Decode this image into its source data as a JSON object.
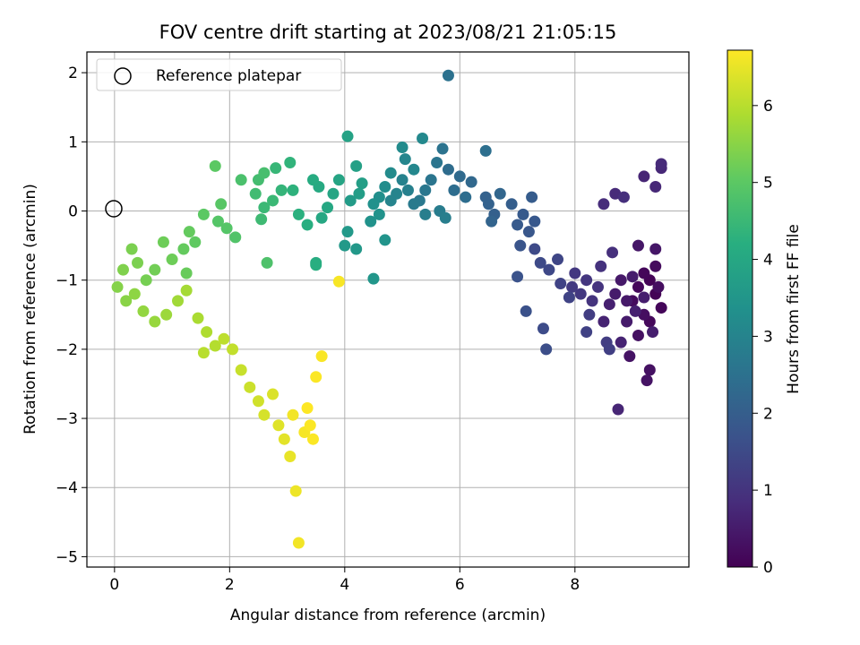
{
  "chart_data": {
    "type": "scatter",
    "title": "FOV centre drift starting at 2023/08/21 21:05:15",
    "xlabel": "Angular distance from reference (arcmin)",
    "ylabel": "Rotation from reference (arcmin)",
    "xlim": [
      -0.48,
      9.98
    ],
    "ylim": [
      -5.15,
      2.3
    ],
    "xticks": [
      0,
      2,
      4,
      6,
      8
    ],
    "yticks": [
      -5,
      -4,
      -3,
      -2,
      -1,
      0,
      1,
      2
    ],
    "grid": true,
    "legend": {
      "placement": "top-left",
      "entries": [
        "Reference platepar"
      ]
    },
    "reference_point": {
      "x": 0,
      "y": 0,
      "label": "Reference platepar"
    },
    "colorbar": {
      "label": "Hours from first FF file",
      "min": 0,
      "max": 6.72,
      "ticks": [
        0,
        1,
        2,
        3,
        4,
        5,
        6
      ],
      "colormap": "viridis"
    },
    "points": [
      [
        9.3,
        -1.0,
        0.05
      ],
      [
        9.4,
        -1.2,
        0.05
      ],
      [
        9.2,
        -0.9,
        0.1
      ],
      [
        9.5,
        -1.4,
        0.1
      ],
      [
        9.1,
        -1.1,
        0.12
      ],
      [
        9.3,
        -1.6,
        0.15
      ],
      [
        9.0,
        -1.3,
        0.2
      ],
      [
        9.4,
        -0.8,
        0.2
      ],
      [
        9.2,
        -1.5,
        0.25
      ],
      [
        9.45,
        -1.1,
        0.25
      ],
      [
        9.1,
        -1.8,
        0.3
      ],
      [
        9.3,
        -2.3,
        0.3
      ],
      [
        9.25,
        -2.45,
        0.35
      ],
      [
        8.95,
        -2.1,
        0.35
      ],
      [
        9.4,
        -0.55,
        0.4
      ],
      [
        9.1,
        -0.5,
        0.4
      ],
      [
        8.9,
        -1.3,
        0.45
      ],
      [
        8.8,
        -1.0,
        0.45
      ],
      [
        8.7,
        -1.2,
        0.5
      ],
      [
        8.9,
        -1.6,
        0.5
      ],
      [
        9.0,
        -0.95,
        0.52
      ],
      [
        9.2,
        -1.25,
        0.55
      ],
      [
        9.35,
        -1.75,
        0.55
      ],
      [
        9.05,
        -1.45,
        0.6
      ],
      [
        8.6,
        -1.35,
        0.6
      ],
      [
        8.5,
        -1.6,
        0.65
      ],
      [
        8.8,
        -1.9,
        0.65
      ],
      [
        8.75,
        -2.87,
        0.7
      ],
      [
        9.2,
        0.5,
        0.7
      ],
      [
        9.4,
        0.35,
        0.75
      ],
      [
        9.5,
        0.62,
        0.75
      ],
      [
        9.5,
        0.68,
        0.8
      ],
      [
        8.7,
        0.25,
        0.8
      ],
      [
        8.5,
        0.1,
        0.85
      ],
      [
        8.85,
        0.2,
        0.9
      ],
      [
        8.65,
        -0.6,
        0.9
      ],
      [
        8.45,
        -0.8,
        0.95
      ],
      [
        8.4,
        -1.1,
        1.0
      ],
      [
        8.3,
        -1.3,
        1.0
      ],
      [
        8.2,
        -1.0,
        1.05
      ],
      [
        8.1,
        -1.2,
        1.1
      ],
      [
        8.0,
        -0.9,
        1.1
      ],
      [
        7.95,
        -1.1,
        1.15
      ],
      [
        8.25,
        -1.5,
        1.2
      ],
      [
        8.55,
        -1.9,
        1.2
      ],
      [
        8.6,
        -2.0,
        1.25
      ],
      [
        8.2,
        -1.75,
        1.3
      ],
      [
        7.9,
        -1.25,
        1.35
      ],
      [
        7.75,
        -1.05,
        1.35
      ],
      [
        7.7,
        -0.7,
        1.4
      ],
      [
        7.55,
        -0.85,
        1.45
      ],
      [
        7.4,
        -0.75,
        1.5
      ],
      [
        7.3,
        -0.55,
        1.5
      ],
      [
        7.45,
        -1.7,
        1.55
      ],
      [
        7.5,
        -2.0,
        1.6
      ],
      [
        7.15,
        -1.45,
        1.65
      ],
      [
        7.0,
        -0.95,
        1.7
      ],
      [
        7.05,
        -0.5,
        1.75
      ],
      [
        7.2,
        -0.3,
        1.8
      ],
      [
        7.3,
        -0.15,
        1.85
      ],
      [
        7.0,
        -0.2,
        1.9
      ],
      [
        7.1,
        -0.05,
        1.9
      ],
      [
        7.25,
        0.2,
        1.95
      ],
      [
        6.9,
        0.1,
        2.0
      ],
      [
        6.6,
        -0.05,
        2.05
      ],
      [
        6.5,
        0.1,
        2.1
      ],
      [
        6.45,
        0.2,
        2.1
      ],
      [
        6.55,
        -0.15,
        2.15
      ],
      [
        6.7,
        0.25,
        2.2
      ],
      [
        6.2,
        0.42,
        2.25
      ],
      [
        6.0,
        0.5,
        2.3
      ],
      [
        5.8,
        0.6,
        2.35
      ],
      [
        5.9,
        0.3,
        2.4
      ],
      [
        6.1,
        0.2,
        2.4
      ],
      [
        6.45,
        0.87,
        2.45
      ],
      [
        5.8,
        1.96,
        2.5
      ],
      [
        5.7,
        0.9,
        2.55
      ],
      [
        5.6,
        0.7,
        2.6
      ],
      [
        5.5,
        0.45,
        2.6
      ],
      [
        5.4,
        0.3,
        2.65
      ],
      [
        5.3,
        0.15,
        2.7
      ],
      [
        5.2,
        0.1,
        2.75
      ],
      [
        5.65,
        0.0,
        2.8
      ],
      [
        5.75,
        -0.1,
        2.85
      ],
      [
        5.4,
        -0.05,
        2.85
      ],
      [
        5.1,
        0.3,
        2.9
      ],
      [
        5.0,
        0.45,
        2.95
      ],
      [
        4.9,
        0.25,
        3.0
      ],
      [
        4.8,
        0.15,
        3.0
      ],
      [
        5.05,
        0.75,
        3.05
      ],
      [
        5.2,
        0.6,
        3.1
      ],
      [
        5.35,
        1.05,
        3.15
      ],
      [
        5.0,
        0.92,
        3.2
      ],
      [
        4.8,
        0.55,
        3.2
      ],
      [
        4.7,
        0.35,
        3.25
      ],
      [
        4.6,
        0.2,
        3.3
      ],
      [
        4.5,
        0.1,
        3.35
      ],
      [
        4.45,
        -0.15,
        3.4
      ],
      [
        4.6,
        -0.05,
        3.4
      ],
      [
        4.7,
        -0.42,
        3.45
      ],
      [
        4.5,
        -0.98,
        3.5
      ],
      [
        4.2,
        -0.55,
        3.55
      ],
      [
        4.05,
        -0.3,
        3.6
      ],
      [
        4.0,
        -0.5,
        3.6
      ],
      [
        4.1,
        0.15,
        3.65
      ],
      [
        4.25,
        0.25,
        3.7
      ],
      [
        4.3,
        0.4,
        3.75
      ],
      [
        4.2,
        0.65,
        3.8
      ],
      [
        4.05,
        1.08,
        3.85
      ],
      [
        3.9,
        0.45,
        3.9
      ],
      [
        3.8,
        0.25,
        3.95
      ],
      [
        3.7,
        0.05,
        4.0
      ],
      [
        3.6,
        -0.1,
        4.0
      ],
      [
        3.55,
        0.35,
        4.05
      ],
      [
        3.45,
        0.45,
        4.1
      ],
      [
        3.5,
        -0.75,
        4.15
      ],
      [
        3.5,
        -0.78,
        4.2
      ],
      [
        3.35,
        -0.2,
        4.2
      ],
      [
        3.2,
        -0.05,
        4.25
      ],
      [
        3.1,
        0.3,
        4.3
      ],
      [
        3.05,
        0.7,
        4.35
      ],
      [
        2.9,
        0.3,
        4.4
      ],
      [
        2.8,
        0.62,
        4.45
      ],
      [
        2.75,
        0.15,
        4.5
      ],
      [
        2.6,
        0.05,
        4.5
      ],
      [
        2.55,
        -0.12,
        4.55
      ],
      [
        2.45,
        0.25,
        4.6
      ],
      [
        2.5,
        0.45,
        4.65
      ],
      [
        2.6,
        0.55,
        4.7
      ],
      [
        2.2,
        0.45,
        4.75
      ],
      [
        2.65,
        -0.75,
        4.8
      ],
      [
        2.1,
        -0.38,
        4.85
      ],
      [
        1.95,
        -0.25,
        4.9
      ],
      [
        1.8,
        -0.15,
        4.9
      ],
      [
        1.85,
        0.1,
        4.95
      ],
      [
        1.75,
        0.65,
        5.0
      ],
      [
        1.55,
        -0.05,
        5.0
      ],
      [
        1.4,
        -0.45,
        5.05
      ],
      [
        1.3,
        -0.3,
        5.1
      ],
      [
        1.2,
        -0.55,
        5.1
      ],
      [
        1.25,
        -0.9,
        5.15
      ],
      [
        1.0,
        -0.7,
        5.2
      ],
      [
        0.85,
        -0.45,
        5.2
      ],
      [
        0.7,
        -0.85,
        5.25
      ],
      [
        0.55,
        -1.0,
        5.3
      ],
      [
        0.4,
        -0.75,
        5.35
      ],
      [
        0.3,
        -0.55,
        5.35
      ],
      [
        0.15,
        -0.85,
        5.4
      ],
      [
        0.05,
        -1.1,
        5.45
      ],
      [
        0.2,
        -1.3,
        5.5
      ],
      [
        0.35,
        -1.2,
        5.55
      ],
      [
        0.5,
        -1.45,
        5.6
      ],
      [
        0.7,
        -1.6,
        5.65
      ],
      [
        0.9,
        -1.5,
        5.7
      ],
      [
        1.1,
        -1.3,
        5.75
      ],
      [
        1.25,
        -1.15,
        5.8
      ],
      [
        1.45,
        -1.55,
        5.85
      ],
      [
        1.6,
        -1.75,
        5.9
      ],
      [
        1.75,
        -1.95,
        5.95
      ],
      [
        1.55,
        -2.05,
        6.0
      ],
      [
        1.9,
        -1.85,
        6.05
      ],
      [
        2.05,
        -2.0,
        6.1
      ],
      [
        2.2,
        -2.3,
        6.15
      ],
      [
        2.35,
        -2.55,
        6.2
      ],
      [
        2.5,
        -2.75,
        6.25
      ],
      [
        2.6,
        -2.95,
        6.3
      ],
      [
        2.75,
        -2.65,
        6.35
      ],
      [
        2.85,
        -3.1,
        6.4
      ],
      [
        2.95,
        -3.3,
        6.45
      ],
      [
        3.05,
        -3.55,
        6.5
      ],
      [
        3.15,
        -4.05,
        6.55
      ],
      [
        3.2,
        -4.8,
        6.6
      ],
      [
        3.3,
        -3.2,
        6.65
      ],
      [
        3.4,
        -3.1,
        6.7
      ],
      [
        3.35,
        -2.85,
        6.72
      ],
      [
        3.5,
        -2.4,
        6.7
      ],
      [
        3.6,
        -2.1,
        6.68
      ],
      [
        3.9,
        -1.02,
        6.66
      ],
      [
        3.45,
        -3.3,
        6.7
      ],
      [
        3.1,
        -2.95,
        6.6
      ]
    ]
  }
}
